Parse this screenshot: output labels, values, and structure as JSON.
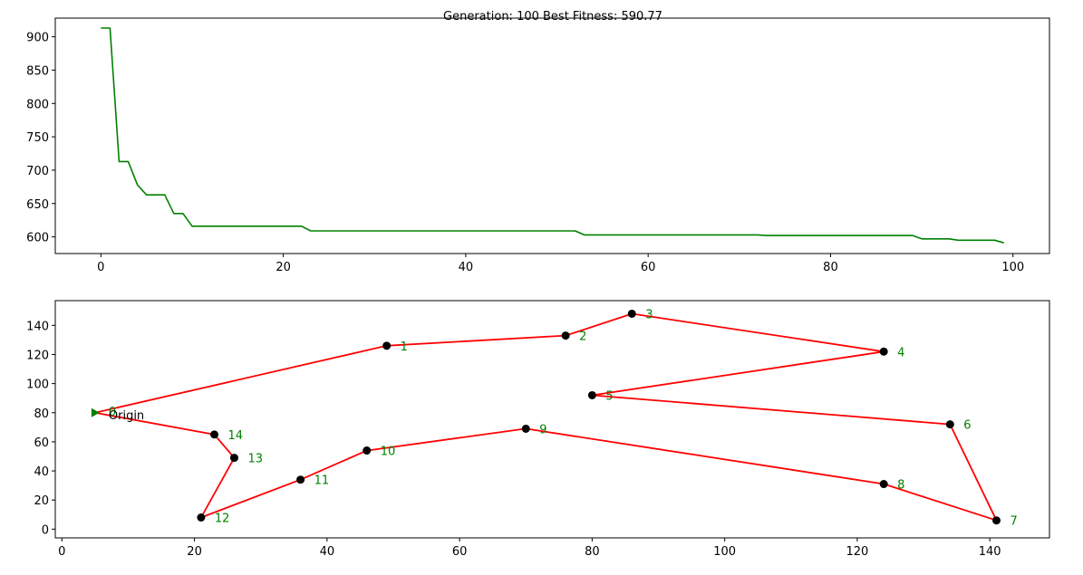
{
  "title": "Generation: 100 Best Fitness: 590.77",
  "chart_data": [
    {
      "type": "line",
      "title": "Generation: 100 Best Fitness: 590.77",
      "xlabel": "",
      "ylabel": "",
      "xlim": [
        -5,
        104
      ],
      "ylim": [
        575,
        928
      ],
      "xticks": [
        0,
        20,
        40,
        60,
        80,
        100
      ],
      "yticks": [
        600,
        650,
        700,
        750,
        800,
        850,
        900
      ],
      "grid": false,
      "series": [
        {
          "color": "#008000",
          "x": [
            0,
            1,
            2,
            3,
            4,
            5,
            6,
            7,
            8,
            9,
            10,
            11,
            12,
            13,
            14,
            15,
            16,
            17,
            18,
            19,
            20,
            21,
            22,
            23,
            24,
            25,
            26,
            27,
            28,
            29,
            30,
            31,
            32,
            33,
            34,
            35,
            36,
            37,
            38,
            39,
            40,
            41,
            42,
            43,
            44,
            45,
            46,
            47,
            48,
            49,
            50,
            51,
            52,
            53,
            54,
            55,
            56,
            57,
            58,
            59,
            60,
            61,
            62,
            63,
            64,
            65,
            66,
            67,
            68,
            69,
            70,
            71,
            72,
            73,
            74,
            75,
            76,
            77,
            78,
            79,
            80,
            81,
            82,
            83,
            84,
            85,
            86,
            87,
            88,
            89,
            90,
            91,
            92,
            93,
            94,
            95,
            96,
            97,
            98,
            99
          ],
          "y": [
            913,
            913,
            713,
            713,
            678,
            663,
            663,
            663,
            635,
            635,
            616,
            616,
            616,
            616,
            616,
            616,
            616,
            616,
            616,
            616,
            616,
            616,
            616,
            609,
            609,
            609,
            609,
            609,
            609,
            609,
            609,
            609,
            609,
            609,
            609,
            609,
            609,
            609,
            609,
            609,
            609,
            609,
            609,
            609,
            609,
            609,
            609,
            609,
            609,
            609,
            609,
            609,
            609,
            603,
            603,
            603,
            603,
            603,
            603,
            603,
            603,
            603,
            603,
            603,
            603,
            603,
            603,
            603,
            603,
            603,
            603,
            603,
            603,
            602,
            602,
            602,
            602,
            602,
            602,
            602,
            602,
            602,
            602,
            602,
            602,
            602,
            602,
            602,
            602,
            602,
            597,
            597,
            597,
            597,
            595,
            595,
            595,
            595,
            595,
            591
          ]
        }
      ]
    },
    {
      "type": "scatter",
      "xlabel": "",
      "ylabel": "",
      "xlim": [
        -1,
        149
      ],
      "ylim": [
        -6,
        157
      ],
      "xticks": [
        0,
        20,
        40,
        60,
        80,
        100,
        120,
        140
      ],
      "yticks": [
        0,
        20,
        40,
        60,
        80,
        100,
        120,
        140
      ],
      "grid": false,
      "route_color": "#ff0000",
      "point_color": "#000000",
      "label_color": "#008000",
      "origin": {
        "x": 5,
        "y": 80,
        "label": "0",
        "text": "Origin",
        "marker_color": "#008000"
      },
      "points": [
        {
          "label": "1",
          "x": 49,
          "y": 126
        },
        {
          "label": "2",
          "x": 76,
          "y": 133
        },
        {
          "label": "3",
          "x": 86,
          "y": 148
        },
        {
          "label": "4",
          "x": 124,
          "y": 122
        },
        {
          "label": "5",
          "x": 80,
          "y": 92
        },
        {
          "label": "6",
          "x": 134,
          "y": 72
        },
        {
          "label": "7",
          "x": 141,
          "y": 6
        },
        {
          "label": "8",
          "x": 124,
          "y": 31
        },
        {
          "label": "9",
          "x": 70,
          "y": 69
        },
        {
          "label": "10",
          "x": 46,
          "y": 54
        },
        {
          "label": "11",
          "x": 36,
          "y": 34
        },
        {
          "label": "12",
          "x": 21,
          "y": 8
        },
        {
          "label": "13",
          "x": 26,
          "y": 49
        },
        {
          "label": "14",
          "x": 23,
          "y": 65
        }
      ],
      "route": [
        0,
        1,
        2,
        3,
        4,
        5,
        6,
        7,
        8,
        9,
        10,
        11,
        12,
        13,
        14,
        0
      ]
    }
  ]
}
